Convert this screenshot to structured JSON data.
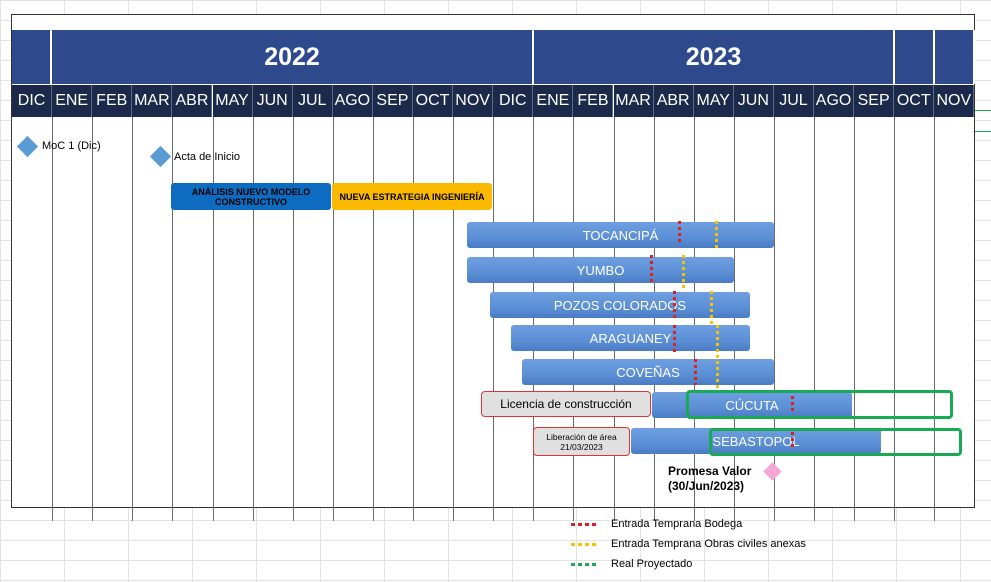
{
  "years": [
    {
      "label": ""
    },
    {
      "label": "2022"
    },
    {
      "label": "2023"
    },
    {
      "label": ""
    },
    {
      "label": ""
    }
  ],
  "months": [
    "DIC",
    "ENE",
    "FEB",
    "MAR",
    "ABR",
    "MAY",
    "JUN",
    "JUL",
    "AGO",
    "SEP",
    "OCT",
    "NOV",
    "DIC",
    "ENE",
    "FEB",
    "MAR",
    "ABR",
    "MAY",
    "JUN",
    "JUL",
    "AGO",
    "SEP",
    "OCT",
    "NOV"
  ],
  "milestones": {
    "moc": "MoC 1 (Dic)",
    "acta": "Acta de Inicio",
    "promesa_line1": "Promesa Valor",
    "promesa_line2": "(30/Jun/2023)"
  },
  "phases": {
    "analisis": "ANÁLISIS NUEVO MODELO CONSTRUCTIVO",
    "estrategia": "NUEVA ESTRATEGIA INGENIERÍA"
  },
  "bars": {
    "tocancipa": "TOCANCIPÁ",
    "yumbo": "YUMBO",
    "pozos": "POZOS COLORADOS",
    "araguaney": "ARAGUANEY",
    "covenas": "COVEÑAS",
    "cucuta": "CÚCUTA",
    "sebastopol": "SEBASTOPOL"
  },
  "notes": {
    "licencia": "Licencia de construcción",
    "liberacion": "Liberación de área 21/03/2023"
  },
  "legend": {
    "bodega": "Entrada Temprana Bodega",
    "obras": "Entrada Temprana Obras civiles anexas",
    "real": "Real Proyectado"
  },
  "colors": {
    "header_year": "#2f4a8c",
    "header_month": "#1b2a4a",
    "bar_blue": "#5b8fd6",
    "phase_blue": "#0d6cc0",
    "phase_yellow": "#fbb900",
    "milestone_blue": "#5b9bd5",
    "milestone_pink": "#f4a6d7",
    "bodega_red": "#e02020",
    "obras_yellow": "#f5c400",
    "real_green": "#1aaa55"
  }
}
